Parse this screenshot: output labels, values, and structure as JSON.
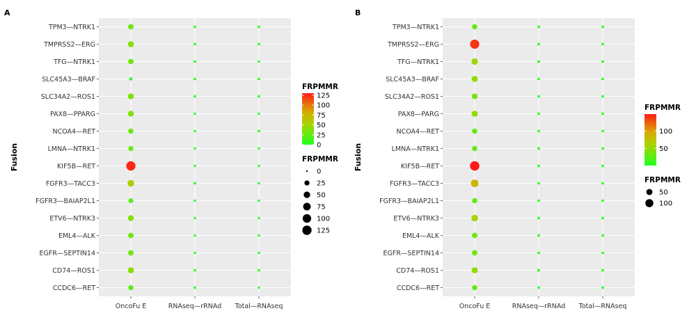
{
  "chart_data": [
    {
      "type": "scatter",
      "panel": "A",
      "xlabel": "",
      "ylabel": "Fusion",
      "categories_x": [
        "OncoFu E",
        "RNAseq—rRNAd",
        "Total—RNAseq"
      ],
      "categories_y": [
        "TPM3—NTRK1",
        "TMPRSS2—ERG",
        "TFG—NTRK1",
        "SLC45A3—BRAF",
        "SLC34A2—ROS1",
        "PAX8—PPARG",
        "NCOA4—RET",
        "LMNA—NTRK1",
        "KIF5B—RET",
        "FGFR3—TACC3",
        "FGFR3—BAIAP2L1",
        "ETV6—NTRK3",
        "EML4—ALK",
        "EGFR—SEPTIN14",
        "CD74—ROS1",
        "CCDC6—RET"
      ],
      "values": {
        "OncoFu E": [
          30,
          40,
          30,
          5,
          37,
          37,
          28,
          25,
          125,
          55,
          22,
          37,
          30,
          30,
          42,
          25
        ],
        "RNAseq—rRNAd": [
          2,
          2,
          2,
          2,
          2,
          1,
          1,
          1,
          1,
          2,
          1,
          1,
          1,
          1,
          2,
          2
        ],
        "Total—RNAseq": [
          2,
          2,
          1,
          2,
          2,
          1,
          2,
          1,
          1,
          1,
          1,
          1,
          1,
          1,
          2,
          1
        ]
      },
      "color_legend": {
        "title": "FRPMMR",
        "ticks": [
          125,
          100,
          75,
          50,
          25,
          0
        ],
        "range": [
          0,
          130
        ]
      },
      "size_legend": {
        "title": "FRPMMR",
        "ticks": [
          0,
          25,
          50,
          75,
          100,
          125
        ],
        "range": [
          0,
          130
        ]
      }
    },
    {
      "type": "scatter",
      "panel": "B",
      "xlabel": "",
      "ylabel": "Fusion",
      "categories_x": [
        "OncoFu E",
        "RNAseq—rRNAd",
        "Total—RNAseq"
      ],
      "categories_y": [
        "TPM3—NTRK1",
        "TMPRSS2—ERG",
        "TFG—NTRK1",
        "SLC45A3—BRAF",
        "SLC34A2—ROS1",
        "PAX8—PARG",
        "NCOA4—RET",
        "LMNA—NTRK1",
        "KIF5B—RET",
        "FGFR3—TACC3",
        "FGFR3—BAIAP2L1",
        "ETV6—NTRK3",
        "EML4—ALK",
        "EGFR—SEPTIN14",
        "CD74—ROS1",
        "CCDC6—RET"
      ],
      "values": {
        "OncoFu E": [
          30,
          140,
          55,
          50,
          40,
          50,
          30,
          30,
          150,
          85,
          30,
          60,
          35,
          35,
          50,
          30
        ],
        "RNAseq—rRNAd": [
          2,
          2,
          2,
          2,
          2,
          2,
          2,
          2,
          2,
          2,
          2,
          2,
          2,
          2,
          3,
          2
        ],
        "Total—RNAseq": [
          2,
          2,
          2,
          2,
          2,
          2,
          2,
          2,
          2,
          2,
          2,
          2,
          2,
          2,
          2,
          2
        ]
      },
      "color_legend": {
        "title": "FRPMMR",
        "ticks": [
          100,
          50
        ],
        "range": [
          0,
          150
        ]
      },
      "size_legend": {
        "title": "FRPMMR",
        "ticks": [
          50,
          100
        ],
        "range": [
          0,
          150
        ]
      }
    }
  ]
}
